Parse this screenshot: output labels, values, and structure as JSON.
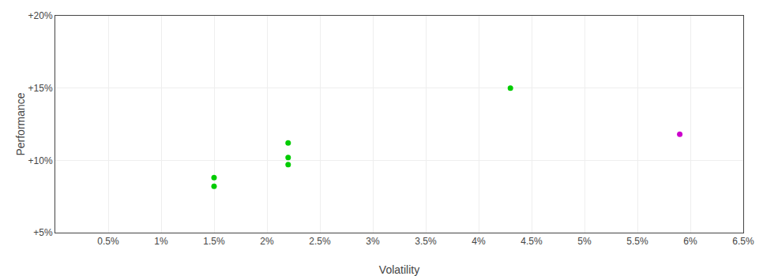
{
  "chart_data": {
    "type": "scatter",
    "xlabel": "Volatility",
    "ylabel": "Performance",
    "x": [
      0.015,
      0.015,
      0.022,
      0.022,
      0.022,
      0.043,
      0.059
    ],
    "values": [
      0.088,
      0.082,
      0.112,
      0.102,
      0.097,
      0.15,
      0.118
    ],
    "colors": [
      "#00cc00",
      "#00cc00",
      "#00cc00",
      "#00cc00",
      "#00cc00",
      "#00cc00",
      "#cc00cc"
    ],
    "xlim": [
      0.0,
      0.065
    ],
    "ylim": [
      0.05,
      0.2
    ],
    "xticks": [
      {
        "value": 0.005,
        "label": "0.5%"
      },
      {
        "value": 0.01,
        "label": "1%"
      },
      {
        "value": 0.015,
        "label": "1.5%"
      },
      {
        "value": 0.02,
        "label": "2%"
      },
      {
        "value": 0.025,
        "label": "2.5%"
      },
      {
        "value": 0.03,
        "label": "3%"
      },
      {
        "value": 0.035,
        "label": "3.5%"
      },
      {
        "value": 0.04,
        "label": "4%"
      },
      {
        "value": 0.045,
        "label": "4.5%"
      },
      {
        "value": 0.05,
        "label": "5%"
      },
      {
        "value": 0.055,
        "label": "5.5%"
      },
      {
        "value": 0.06,
        "label": "6%"
      },
      {
        "value": 0.065,
        "label": "6.5%"
      }
    ],
    "yticks": [
      {
        "value": 0.05,
        "label": "+5%"
      },
      {
        "value": 0.1,
        "label": "+10%"
      },
      {
        "value": 0.15,
        "label": "+15%"
      },
      {
        "value": 0.2,
        "label": "+20%"
      }
    ],
    "grid": true
  }
}
